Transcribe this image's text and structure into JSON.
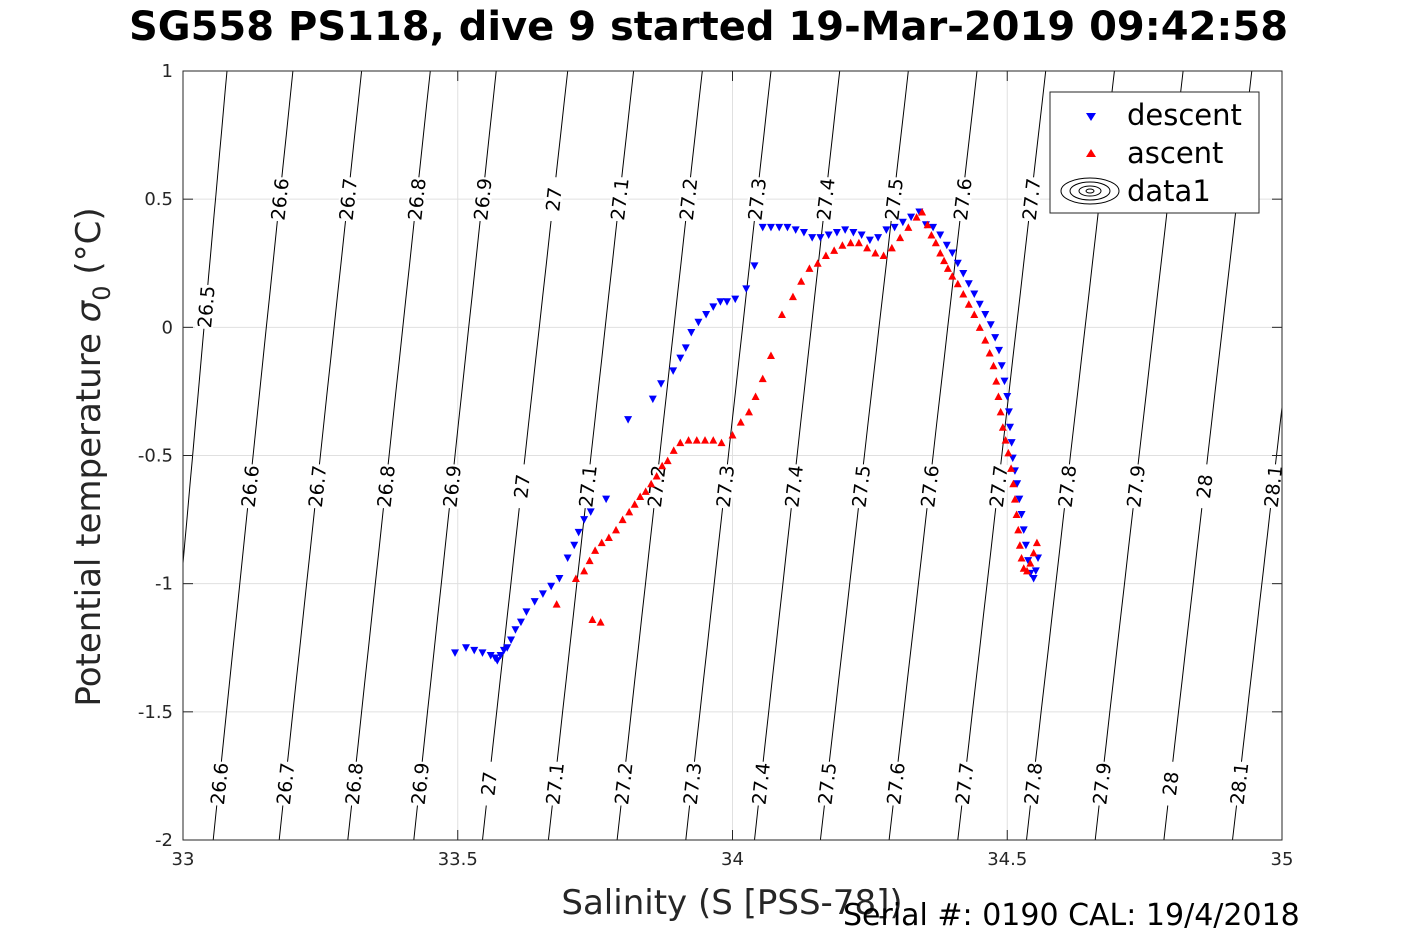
{
  "chart_data": {
    "type": "scatter",
    "title": "SG558 PS118, dive 9 started 19-Mar-2019 09:42:58",
    "xlabel": "Salinity (S [PSS-78])",
    "ylabel_main": "Potential temperature ",
    "ylabel_sigma": "σ",
    "ylabel_sub": "0",
    "ylabel_unit": " (°C)",
    "xlim": [
      33,
      35
    ],
    "ylim": [
      -2,
      1
    ],
    "x_ticks": [
      33,
      33.5,
      34,
      34.5,
      35
    ],
    "x_tick_labels": [
      "33",
      "33.5",
      "34",
      "34.5",
      "35"
    ],
    "y_ticks": [
      -2,
      -1.5,
      -1,
      -0.5,
      0,
      0.5,
      1
    ],
    "y_tick_labels": [
      "-2",
      "-1.5",
      "-1",
      "-0.5",
      "0",
      "0.5",
      "1"
    ],
    "grid": true,
    "legend_position": "top-right",
    "legend": [
      "descent",
      "ascent",
      "data1"
    ],
    "colors": {
      "descent": "#0000ff",
      "ascent": "#ff0000",
      "contour": "#000000",
      "grid": "#e0e0e0"
    },
    "contours": [
      {
        "labels": [
          "26.5"
        ],
        "x_at_top": 33.08,
        "x_at_bottom": 32.955
      },
      {
        "labels": [
          "26.6",
          "26.6",
          "26.6"
        ],
        "x_at_top": 33.2,
        "x_at_bottom": 33.055
      },
      {
        "labels": [
          "26.7",
          "26.7",
          "26.7"
        ],
        "x_at_top": 33.325,
        "x_at_bottom": 33.175
      },
      {
        "labels": [
          "26.8",
          "26.8",
          "26.8"
        ],
        "x_at_top": 33.45,
        "x_at_bottom": 33.3
      },
      {
        "labels": [
          "26.9",
          "26.9",
          "26.9"
        ],
        "x_at_top": 33.57,
        "x_at_bottom": 33.42
      },
      {
        "labels": [
          "27",
          "27",
          "27"
        ],
        "x_at_top": 33.7,
        "x_at_bottom": 33.545
      },
      {
        "labels": [
          "27.1",
          "27.1",
          "27.1"
        ],
        "x_at_top": 33.82,
        "x_at_bottom": 33.665
      },
      {
        "labels": [
          "27.2",
          "27.2",
          "27.2"
        ],
        "x_at_top": 33.945,
        "x_at_bottom": 33.79
      },
      {
        "labels": [
          "27.3",
          "27.3",
          "27.3"
        ],
        "x_at_top": 34.07,
        "x_at_bottom": 33.915
      },
      {
        "labels": [
          "27.4",
          "27.4",
          "27.4"
        ],
        "x_at_top": 34.195,
        "x_at_bottom": 34.04
      },
      {
        "labels": [
          "27.5",
          "27.5",
          "27.5"
        ],
        "x_at_top": 34.32,
        "x_at_bottom": 34.16
      },
      {
        "labels": [
          "27.6",
          "27.6",
          "27.6"
        ],
        "x_at_top": 34.445,
        "x_at_bottom": 34.285
      },
      {
        "labels": [
          "27.7",
          "27.7",
          "27.7"
        ],
        "x_at_top": 34.57,
        "x_at_bottom": 34.41
      },
      {
        "labels": [
          "27.8",
          "27.8"
        ],
        "x_at_top": 34.695,
        "x_at_bottom": 34.535
      },
      {
        "labels": [
          "27.9",
          "27.9"
        ],
        "x_at_top": 34.82,
        "x_at_bottom": 34.66
      },
      {
        "labels": [
          "28",
          "28"
        ],
        "x_at_top": 34.945,
        "x_at_bottom": 34.785
      },
      {
        "labels": [
          "28.1",
          "28.1"
        ],
        "x_at_top": 35.07,
        "x_at_bottom": 34.91
      }
    ],
    "series": [
      {
        "name": "descent",
        "marker": "triangle-down",
        "points": [
          [
            33.495,
            -1.27
          ],
          [
            33.515,
            -1.25
          ],
          [
            33.53,
            -1.26
          ],
          [
            33.545,
            -1.27
          ],
          [
            33.56,
            -1.28
          ],
          [
            33.568,
            -1.29
          ],
          [
            33.572,
            -1.3
          ],
          [
            33.578,
            -1.28
          ],
          [
            33.584,
            -1.26
          ],
          [
            33.59,
            -1.25
          ],
          [
            33.597,
            -1.22
          ],
          [
            33.605,
            -1.18
          ],
          [
            33.615,
            -1.15
          ],
          [
            33.625,
            -1.11
          ],
          [
            33.64,
            -1.07
          ],
          [
            33.655,
            -1.04
          ],
          [
            33.67,
            -1.01
          ],
          [
            33.685,
            -0.98
          ],
          [
            33.7,
            -0.9
          ],
          [
            33.712,
            -0.85
          ],
          [
            33.72,
            -0.8
          ],
          [
            33.73,
            -0.75
          ],
          [
            33.742,
            -0.72
          ],
          [
            33.77,
            -0.67
          ],
          [
            33.81,
            -0.36
          ],
          [
            33.855,
            -0.28
          ],
          [
            33.87,
            -0.22
          ],
          [
            33.892,
            -0.17
          ],
          [
            33.905,
            -0.12
          ],
          [
            33.915,
            -0.08
          ],
          [
            33.925,
            -0.02
          ],
          [
            33.938,
            0.02
          ],
          [
            33.952,
            0.05
          ],
          [
            33.965,
            0.08
          ],
          [
            33.978,
            0.1
          ],
          [
            33.99,
            0.1
          ],
          [
            34.005,
            0.11
          ],
          [
            34.025,
            0.15
          ],
          [
            34.04,
            0.24
          ],
          [
            34.055,
            0.39
          ],
          [
            34.07,
            0.39
          ],
          [
            34.085,
            0.39
          ],
          [
            34.1,
            0.39
          ],
          [
            34.115,
            0.38
          ],
          [
            34.13,
            0.37
          ],
          [
            34.145,
            0.35
          ],
          [
            34.16,
            0.35
          ],
          [
            34.175,
            0.36
          ],
          [
            34.19,
            0.37
          ],
          [
            34.205,
            0.38
          ],
          [
            34.22,
            0.37
          ],
          [
            34.235,
            0.36
          ],
          [
            34.25,
            0.34
          ],
          [
            34.265,
            0.35
          ],
          [
            34.28,
            0.38
          ],
          [
            34.295,
            0.39
          ],
          [
            34.31,
            0.41
          ],
          [
            34.325,
            0.43
          ],
          [
            34.34,
            0.45
          ],
          [
            34.352,
            0.4
          ],
          [
            34.365,
            0.39
          ],
          [
            34.378,
            0.36
          ],
          [
            34.39,
            0.32
          ],
          [
            34.4,
            0.29
          ],
          [
            34.41,
            0.25
          ],
          [
            34.42,
            0.21
          ],
          [
            34.43,
            0.17
          ],
          [
            34.44,
            0.13
          ],
          [
            34.45,
            0.09
          ],
          [
            34.46,
            0.05
          ],
          [
            34.47,
            0.01
          ],
          [
            34.478,
            -0.04
          ],
          [
            34.485,
            -0.09
          ],
          [
            34.49,
            -0.15
          ],
          [
            34.495,
            -0.21
          ],
          [
            34.5,
            -0.27
          ],
          [
            34.503,
            -0.33
          ],
          [
            34.505,
            -0.39
          ],
          [
            34.508,
            -0.45
          ],
          [
            34.51,
            -0.51
          ],
          [
            34.514,
            -0.56
          ],
          [
            34.518,
            -0.61
          ],
          [
            34.522,
            -0.67
          ],
          [
            34.526,
            -0.73
          ],
          [
            34.53,
            -0.79
          ],
          [
            34.534,
            -0.85
          ],
          [
            34.538,
            -0.91
          ],
          [
            34.542,
            -0.96
          ],
          [
            34.548,
            -0.98
          ],
          [
            34.552,
            -0.95
          ],
          [
            34.556,
            -0.9
          ]
        ]
      },
      {
        "name": "ascent",
        "marker": "triangle-up",
        "points": [
          [
            33.715,
            -0.98
          ],
          [
            33.73,
            -0.95
          ],
          [
            33.74,
            -0.91
          ],
          [
            33.75,
            -0.87
          ],
          [
            33.762,
            -0.84
          ],
          [
            33.775,
            -0.82
          ],
          [
            33.788,
            -0.79
          ],
          [
            33.8,
            -0.75
          ],
          [
            33.812,
            -0.72
          ],
          [
            33.822,
            -0.69
          ],
          [
            33.832,
            -0.66
          ],
          [
            33.842,
            -0.64
          ],
          [
            33.852,
            -0.61
          ],
          [
            33.862,
            -0.58
          ],
          [
            33.872,
            -0.54
          ],
          [
            33.882,
            -0.52
          ],
          [
            33.893,
            -0.48
          ],
          [
            33.905,
            -0.45
          ],
          [
            33.92,
            -0.44
          ],
          [
            33.935,
            -0.44
          ],
          [
            33.95,
            -0.44
          ],
          [
            33.965,
            -0.44
          ],
          [
            33.98,
            -0.45
          ],
          [
            34.0,
            -0.42
          ],
          [
            34.015,
            -0.37
          ],
          [
            34.03,
            -0.33
          ],
          [
            34.042,
            -0.27
          ],
          [
            34.055,
            -0.2
          ],
          [
            34.07,
            -0.11
          ],
          [
            34.09,
            0.05
          ],
          [
            34.11,
            0.12
          ],
          [
            34.125,
            0.18
          ],
          [
            34.14,
            0.23
          ],
          [
            34.155,
            0.25
          ],
          [
            34.17,
            0.28
          ],
          [
            34.185,
            0.3
          ],
          [
            34.2,
            0.32
          ],
          [
            34.215,
            0.33
          ],
          [
            34.23,
            0.33
          ],
          [
            34.245,
            0.31
          ],
          [
            34.26,
            0.29
          ],
          [
            34.275,
            0.28
          ],
          [
            34.29,
            0.31
          ],
          [
            34.305,
            0.35
          ],
          [
            34.32,
            0.39
          ],
          [
            34.335,
            0.43
          ],
          [
            34.345,
            0.45
          ],
          [
            34.355,
            0.4
          ],
          [
            34.362,
            0.36
          ],
          [
            34.37,
            0.33
          ],
          [
            34.378,
            0.29
          ],
          [
            34.385,
            0.26
          ],
          [
            34.392,
            0.23
          ],
          [
            34.4,
            0.2
          ],
          [
            34.41,
            0.17
          ],
          [
            34.42,
            0.13
          ],
          [
            34.43,
            0.09
          ],
          [
            34.44,
            0.05
          ],
          [
            34.45,
            0.0
          ],
          [
            34.46,
            -0.05
          ],
          [
            34.468,
            -0.1
          ],
          [
            34.475,
            -0.15
          ],
          [
            34.48,
            -0.21
          ],
          [
            34.484,
            -0.27
          ],
          [
            34.488,
            -0.33
          ],
          [
            34.492,
            -0.39
          ],
          [
            34.497,
            -0.44
          ],
          [
            34.502,
            -0.49
          ],
          [
            34.507,
            -0.55
          ],
          [
            34.511,
            -0.61
          ],
          [
            34.514,
            -0.67
          ],
          [
            34.517,
            -0.73
          ],
          [
            34.52,
            -0.79
          ],
          [
            34.523,
            -0.85
          ],
          [
            34.526,
            -0.9
          ],
          [
            34.53,
            -0.94
          ],
          [
            34.536,
            -0.95
          ],
          [
            34.542,
            -0.92
          ],
          [
            34.548,
            -0.88
          ],
          [
            34.554,
            -0.84
          ],
          [
            33.68,
            -1.08
          ],
          [
            33.745,
            -1.14
          ],
          [
            33.76,
            -1.15
          ]
        ]
      }
    ]
  },
  "footer": {
    "text": "Serial #: 0190  CAL: 19/4/2018"
  }
}
